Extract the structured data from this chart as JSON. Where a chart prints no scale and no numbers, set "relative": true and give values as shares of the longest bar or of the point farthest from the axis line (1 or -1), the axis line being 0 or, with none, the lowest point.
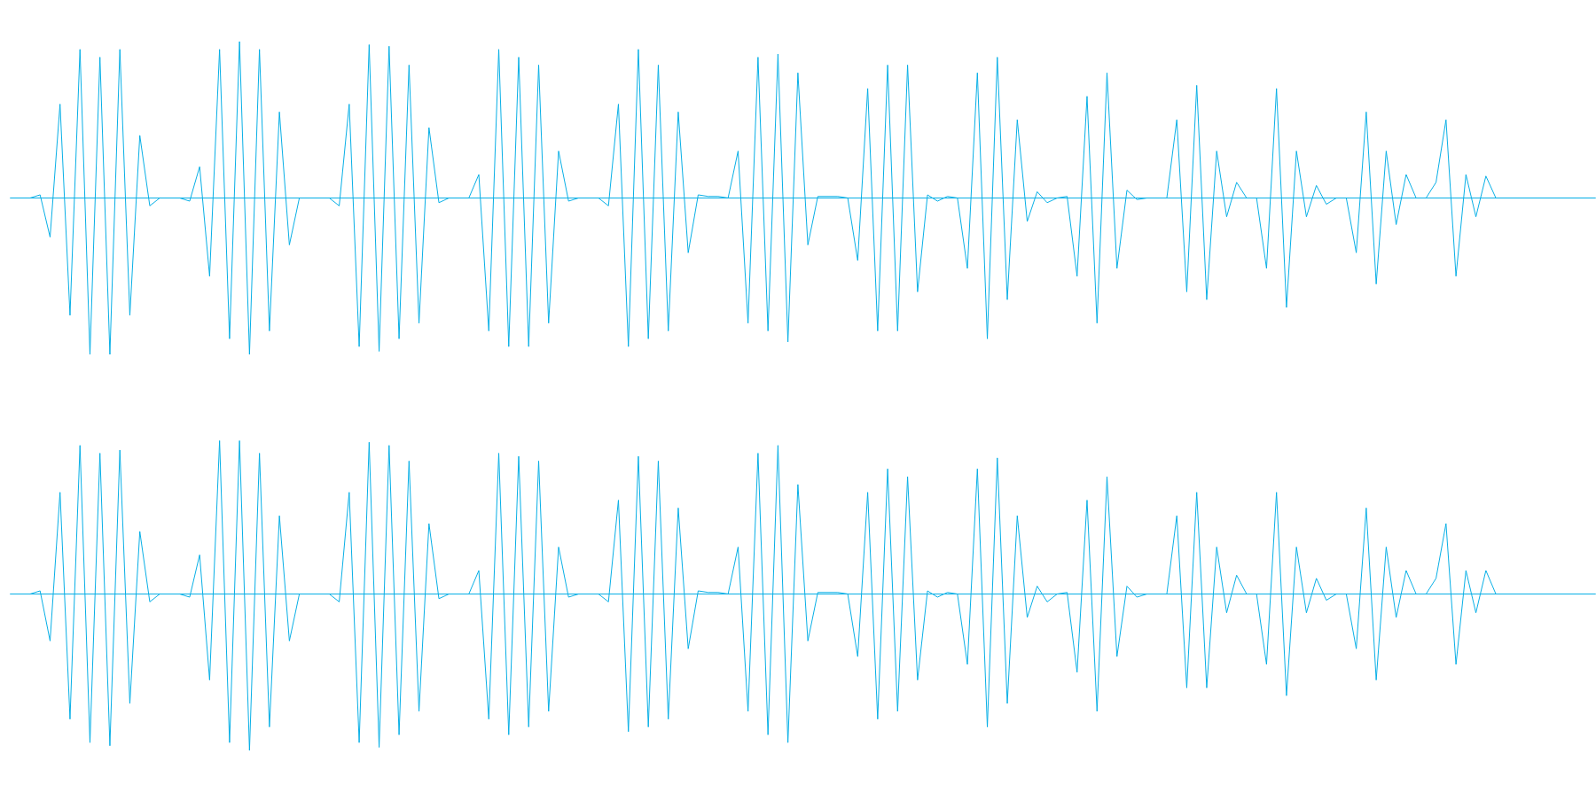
{
  "chart_data": [
    {
      "type": "line",
      "relative": true,
      "color": "#05aee6",
      "categories": [
        null,
        null,
        null,
        null,
        null,
        null,
        null,
        null,
        null,
        null,
        null,
        null,
        null,
        null,
        null,
        null,
        null,
        null,
        null,
        null,
        null,
        null,
        null,
        null,
        null,
        null,
        null,
        null,
        null,
        null,
        null,
        null,
        null,
        null,
        null,
        null,
        null,
        null,
        null,
        null,
        null,
        null,
        null,
        null,
        null,
        null,
        null,
        null,
        null,
        null,
        null,
        null,
        null,
        null,
        null,
        null,
        null,
        null,
        null,
        null,
        null,
        null,
        null,
        null,
        null,
        null,
        null,
        null,
        null,
        null,
        null,
        null,
        null,
        null,
        null,
        null,
        null,
        null,
        null,
        null,
        null,
        null,
        null,
        null,
        null,
        null,
        null,
        null,
        null,
        null,
        null,
        null,
        null,
        null,
        null,
        null,
        null,
        null,
        null,
        null,
        null,
        null,
        null,
        null,
        null,
        null,
        null,
        null,
        null,
        null,
        null,
        null,
        null,
        null,
        null,
        null,
        null,
        null,
        null,
        null,
        null,
        null,
        null,
        null,
        null,
        null,
        null,
        null,
        null,
        null,
        null,
        null,
        null,
        null,
        null,
        null,
        null,
        null,
        null,
        null,
        null,
        null,
        null,
        null,
        null,
        null,
        null,
        null,
        null,
        null,
        null,
        null,
        null,
        null,
        null,
        null,
        null,
        null,
        null,
        null
      ],
      "ref_lines": [
        {
          "axis": "y",
          "value": 0
        }
      ],
      "values": [
        0,
        0,
        0,
        0.02,
        -0.25,
        0.6,
        -0.75,
        0.95,
        -1.0,
        0.9,
        -1.0,
        0.95,
        -0.75,
        0.4,
        -0.05,
        0,
        0,
        0,
        -0.02,
        0.2,
        -0.5,
        0.95,
        -0.9,
        1.0,
        -1.0,
        0.95,
        -0.85,
        0.55,
        -0.3,
        0,
        0,
        0,
        0,
        -0.05,
        0.6,
        -0.95,
        0.98,
        -0.98,
        0.97,
        -0.9,
        0.85,
        -0.8,
        0.45,
        -0.03,
        0,
        0,
        0,
        0.15,
        -0.85,
        0.95,
        -0.95,
        0.9,
        -0.95,
        0.85,
        -0.8,
        0.3,
        -0.02,
        0,
        0,
        0,
        -0.05,
        0.6,
        -0.95,
        0.95,
        -0.9,
        0.85,
        -0.85,
        0.55,
        -0.35,
        0.02,
        0.01,
        0.01,
        0,
        0.3,
        -0.8,
        0.9,
        -0.85,
        0.92,
        -0.92,
        0.8,
        -0.3,
        0.01,
        0.01,
        0.01,
        0,
        -0.4,
        0.7,
        -0.85,
        0.85,
        -0.85,
        0.85,
        -0.6,
        0.02,
        -0.02,
        0.01,
        0,
        -0.45,
        0.8,
        -0.9,
        0.9,
        -0.65,
        0.5,
        -0.15,
        0.04,
        -0.03,
        0,
        0.01,
        -0.5,
        0.65,
        -0.8,
        0.8,
        -0.45,
        0.05,
        -0.01,
        0,
        0,
        0,
        0.5,
        -0.6,
        0.72,
        -0.65,
        0.3,
        -0.12,
        0.1,
        0,
        0,
        -0.45,
        0.7,
        -0.7,
        0.3,
        -0.12,
        0.08,
        -0.04,
        0,
        0,
        -0.35,
        0.55,
        -0.55,
        0.3,
        -0.17,
        0.15,
        0,
        0,
        0.1,
        0.5,
        -0.5,
        0.15,
        -0.12,
        0.14,
        0,
        0,
        0,
        0,
        0,
        0,
        0,
        0,
        0,
        0,
        0
      ]
    },
    {
      "type": "line",
      "relative": true,
      "color": "#05aee6",
      "categories": [
        null,
        null,
        null,
        null,
        null,
        null,
        null,
        null,
        null,
        null,
        null,
        null,
        null,
        null,
        null,
        null,
        null,
        null,
        null,
        null,
        null,
        null,
        null,
        null,
        null,
        null,
        null,
        null,
        null,
        null,
        null,
        null,
        null,
        null,
        null,
        null,
        null,
        null,
        null,
        null,
        null,
        null,
        null,
        null,
        null,
        null,
        null,
        null,
        null,
        null,
        null,
        null,
        null,
        null,
        null,
        null,
        null,
        null,
        null,
        null,
        null,
        null,
        null,
        null,
        null,
        null,
        null,
        null,
        null,
        null,
        null,
        null,
        null,
        null,
        null,
        null,
        null,
        null,
        null,
        null,
        null,
        null,
        null,
        null,
        null,
        null,
        null,
        null,
        null,
        null,
        null,
        null,
        null,
        null,
        null,
        null,
        null,
        null,
        null,
        null,
        null,
        null,
        null,
        null,
        null,
        null,
        null,
        null,
        null,
        null,
        null,
        null,
        null,
        null,
        null,
        null,
        null,
        null,
        null,
        null,
        null,
        null,
        null,
        null,
        null,
        null,
        null,
        null,
        null,
        null,
        null,
        null,
        null,
        null,
        null,
        null,
        null,
        null,
        null,
        null,
        null,
        null,
        null,
        null,
        null,
        null,
        null,
        null,
        null,
        null,
        null,
        null,
        null,
        null,
        null,
        null,
        null,
        null,
        null,
        null
      ],
      "ref_lines": [
        {
          "axis": "y",
          "value": 0
        }
      ],
      "values": [
        0,
        0,
        0,
        0.02,
        -0.3,
        0.65,
        -0.8,
        0.95,
        -0.95,
        0.9,
        -0.97,
        0.92,
        -0.7,
        0.4,
        -0.05,
        0,
        0,
        0,
        -0.02,
        0.25,
        -0.55,
        0.98,
        -0.95,
        0.98,
        -1.0,
        0.9,
        -0.85,
        0.5,
        -0.3,
        0,
        0,
        0,
        0,
        -0.05,
        0.65,
        -0.95,
        0.97,
        -0.98,
        0.95,
        -0.9,
        0.85,
        -0.75,
        0.45,
        -0.03,
        0,
        0,
        0,
        0.15,
        -0.8,
        0.9,
        -0.9,
        0.88,
        -0.85,
        0.85,
        -0.75,
        0.3,
        -0.02,
        0,
        0,
        0,
        -0.05,
        0.6,
        -0.88,
        0.88,
        -0.85,
        0.85,
        -0.8,
        0.55,
        -0.35,
        0.02,
        0.01,
        0.01,
        0,
        0.3,
        -0.75,
        0.9,
        -0.9,
        0.95,
        -0.95,
        0.7,
        -0.3,
        0.01,
        0.01,
        0.01,
        0,
        -0.4,
        0.65,
        -0.8,
        0.8,
        -0.75,
        0.75,
        -0.55,
        0.02,
        -0.02,
        0.01,
        0,
        -0.45,
        0.8,
        -0.85,
        0.87,
        -0.7,
        0.5,
        -0.15,
        0.05,
        -0.05,
        0,
        0.01,
        -0.5,
        0.6,
        -0.75,
        0.75,
        -0.4,
        0.05,
        -0.02,
        0,
        0,
        0,
        0.5,
        -0.6,
        0.65,
        -0.6,
        0.3,
        -0.12,
        0.12,
        0,
        0,
        -0.45,
        0.65,
        -0.65,
        0.3,
        -0.12,
        0.1,
        -0.04,
        0,
        0,
        -0.35,
        0.55,
        -0.55,
        0.3,
        -0.15,
        0.15,
        0,
        0,
        0.1,
        0.45,
        -0.45,
        0.15,
        -0.12,
        0.15,
        0,
        0,
        0,
        0,
        0,
        0,
        0,
        0,
        0,
        0,
        0
      ]
    }
  ]
}
